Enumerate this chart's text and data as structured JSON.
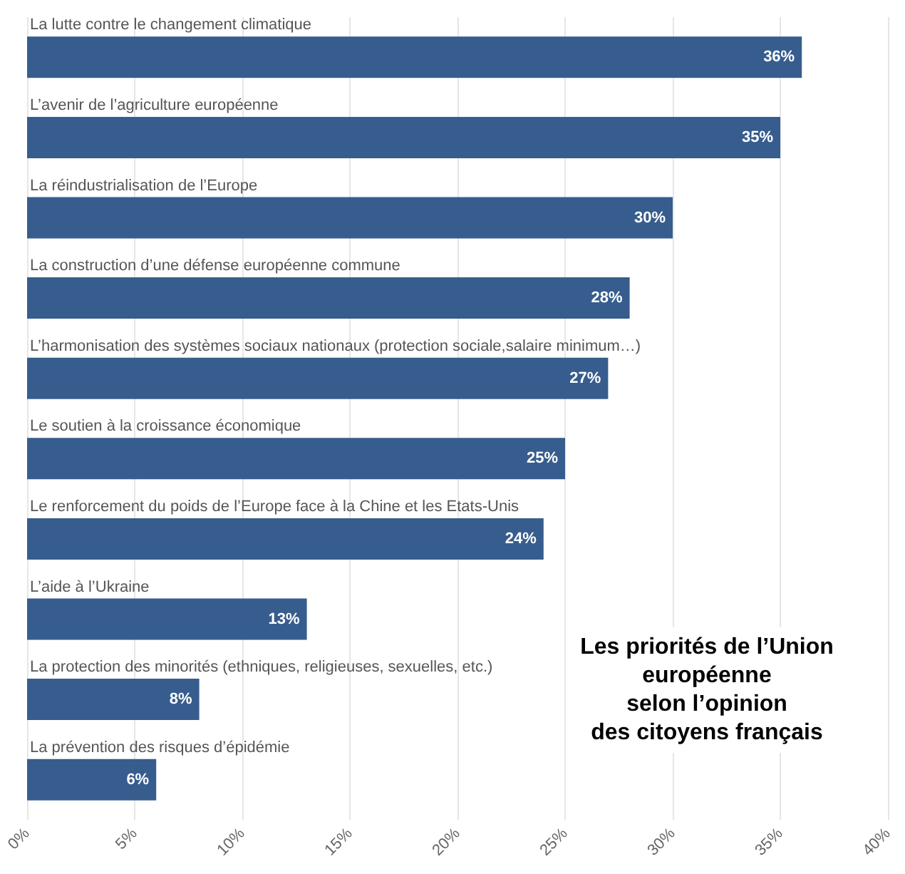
{
  "chart_data": {
    "type": "bar",
    "orientation": "horizontal",
    "title": "Les priorités de l’Union\neuropéenne\nselon l’opinion\ndes citoyens français",
    "categories": [
      "La lutte contre le changement climatique",
      "L’avenir de l’agriculture européenne",
      "La réindustrialisation de l’Europe",
      "La construction d’une défense européenne commune",
      "L’harmonisation des systèmes sociaux nationaux (protection sociale,salaire minimum…)",
      "Le soutien à la croissance économique",
      "Le renforcement du poids de l’Europe face à la Chine et les Etats-Unis",
      "L’aide à l’Ukraine",
      "La protection des minorités (ethniques, religieuses, sexuelles, etc.)",
      "La prévention des risques d’épidémie"
    ],
    "values": [
      36,
      35,
      30,
      28,
      27,
      25,
      24,
      13,
      8,
      6
    ],
    "value_labels": [
      "36%",
      "35%",
      "30%",
      "28%",
      "27%",
      "25%",
      "24%",
      "13%",
      "8%",
      "6%"
    ],
    "color": "#365d8d",
    "xlim": [
      0,
      40
    ],
    "xticks": [
      {
        "value": 0,
        "label": "0%"
      },
      {
        "value": 5,
        "label": "5%"
      },
      {
        "value": 10,
        "label": "10%"
      },
      {
        "value": 15,
        "label": "15%"
      },
      {
        "value": 20,
        "label": "20%"
      },
      {
        "value": 25,
        "label": "25%"
      },
      {
        "value": 30,
        "label": "30%"
      },
      {
        "value": 35,
        "label": "35%"
      },
      {
        "value": 40,
        "label": "40%"
      }
    ],
    "grid": "x"
  }
}
